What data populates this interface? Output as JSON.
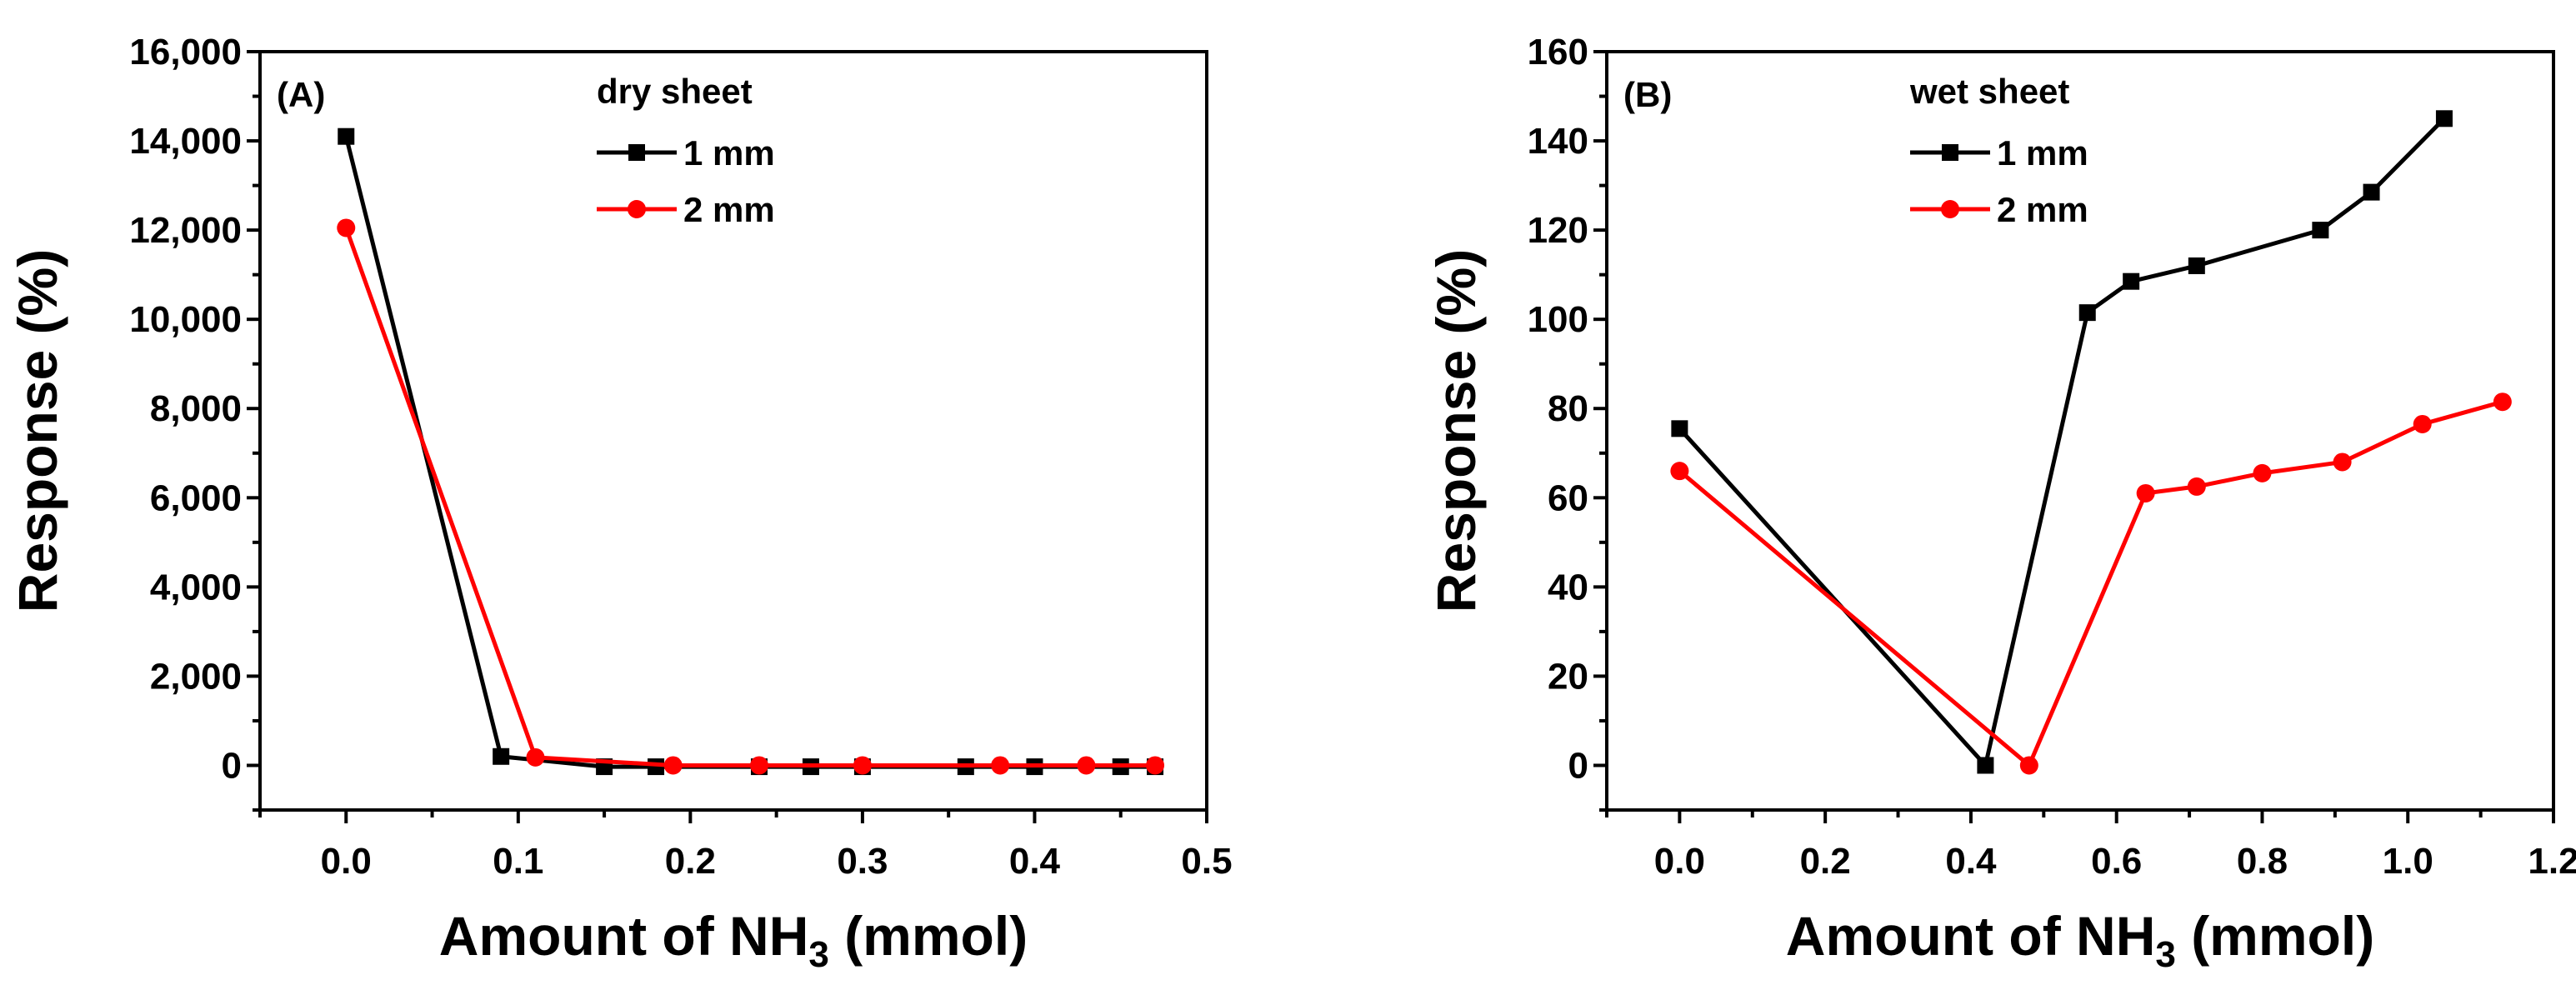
{
  "chart_data": [
    {
      "type": "line",
      "panel_label": "(A)",
      "legend_title": "dry sheet",
      "xlabel": {
        "main": "Amount of NH",
        "sub": "3",
        "tail": " (mmol)"
      },
      "ylabel": "Response (%)",
      "xlim": [
        -0.05,
        0.5
      ],
      "ylim": [
        -1000,
        16000
      ],
      "xticks": [
        0.0,
        0.1,
        0.2,
        0.3,
        0.4,
        0.5
      ],
      "xtick_labels": [
        "0.0",
        "0.1",
        "0.2",
        "0.3",
        "0.4",
        "0.5"
      ],
      "yticks": [
        0,
        2000,
        4000,
        6000,
        8000,
        10000,
        12000,
        14000,
        16000
      ],
      "ytick_labels": [
        "0",
        "2,000",
        "4,000",
        "6,000",
        "8,000",
        "10,000",
        "12,000",
        "14,000",
        "16,000"
      ],
      "series": [
        {
          "name": "1 mm",
          "color": "#000000",
          "marker": "square",
          "x": [
            0.0,
            0.09,
            0.15,
            0.18,
            0.24,
            0.27,
            0.3,
            0.36,
            0.4,
            0.45,
            0.47
          ],
          "y": [
            14100,
            200,
            -30,
            -30,
            -30,
            -30,
            -30,
            -30,
            -30,
            -30,
            -30
          ]
        },
        {
          "name": "2 mm",
          "color": "#ff0000",
          "marker": "circle",
          "x": [
            0.0,
            0.11,
            0.19,
            0.24,
            0.3,
            0.38,
            0.43,
            0.47
          ],
          "y": [
            12050,
            180,
            0,
            0,
            0,
            0,
            0,
            0
          ]
        }
      ]
    },
    {
      "type": "line",
      "panel_label": "(B)",
      "legend_title": "wet sheet",
      "xlabel": {
        "main": "Amount of NH",
        "sub": "3",
        "tail": " (mmol)"
      },
      "ylabel": "Response (%)",
      "xlim": [
        -0.1,
        1.2
      ],
      "ylim": [
        -10,
        160
      ],
      "xticks": [
        0.0,
        0.2,
        0.4,
        0.6,
        0.8,
        1.0,
        1.2
      ],
      "xtick_labels": [
        "0.0",
        "0.2",
        "0.4",
        "0.6",
        "0.8",
        "1.0",
        "1.2"
      ],
      "yticks": [
        0,
        20,
        40,
        60,
        80,
        100,
        120,
        140,
        160
      ],
      "ytick_labels": [
        "0",
        "20",
        "40",
        "60",
        "80",
        "100",
        "120",
        "140",
        "160"
      ],
      "series": [
        {
          "name": "1 mm",
          "color": "#000000",
          "marker": "square",
          "x": [
            0.0,
            0.42,
            0.56,
            0.62,
            0.71,
            0.88,
            0.95,
            1.05
          ],
          "y": [
            75.5,
            0,
            101.5,
            108.5,
            112,
            120,
            128.5,
            145
          ]
        },
        {
          "name": "2 mm",
          "color": "#ff0000",
          "marker": "circle",
          "x": [
            0.0,
            0.48,
            0.64,
            0.71,
            0.8,
            0.91,
            1.02,
            1.13
          ],
          "y": [
            66,
            0,
            61,
            62.5,
            65.5,
            68,
            76.5,
            81.5
          ]
        }
      ]
    }
  ]
}
